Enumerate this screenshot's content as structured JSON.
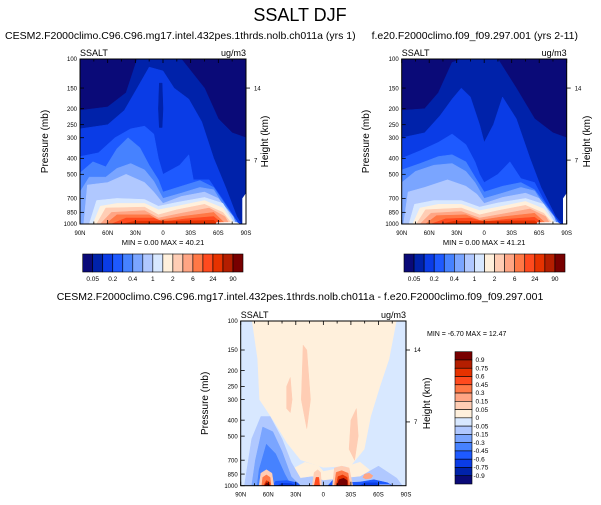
{
  "figure": {
    "title": "SSALT DJF"
  },
  "palette": [
    "#0a0a78",
    "#0022aa",
    "#0a3ce6",
    "#1e5aff",
    "#4682ff",
    "#7aa5ff",
    "#b0c8ff",
    "#d8e8ff",
    "#fff0dc",
    "#ffcdb4",
    "#ffa584",
    "#ff7846",
    "#ff4a1e",
    "#e63200",
    "#b41e00",
    "#780000"
  ],
  "chart_data": [
    {
      "type": "contour",
      "title": "CESM2.F2000climo.C96.C96.mg17.intel.432pes.1thrds.nolb.ch011a (yrs 1)",
      "variable": "SSALT",
      "units": "ug/m3",
      "ylabel": "Pressure (mb)",
      "ylabel_right": "Height (km)",
      "x_ticks": [
        "90N",
        "60N",
        "30N",
        "0",
        "30S",
        "60S",
        "90S"
      ],
      "y_ticks": [
        100,
        150,
        200,
        250,
        300,
        400,
        500,
        700,
        850,
        1000
      ],
      "y_scale": "log",
      "y_right_ticks": [
        {
          "label": "14",
          "p": 150
        },
        {
          "label": "7",
          "p": 410
        }
      ],
      "min_label": "MIN =   0.00  MAX =  40.21",
      "min": 0.0,
      "max": 40.21,
      "colorbar": {
        "orientation": "horizontal",
        "labels": [
          "0.05",
          "0.2",
          "0.4",
          "1",
          "2",
          "6",
          "24",
          "90"
        ]
      }
    },
    {
      "type": "contour",
      "title": "f.e20.F2000climo.f09_f09.297.001 (yrs 2-11)",
      "variable": "SSALT",
      "units": "ug/m3",
      "ylabel": "Pressure (mb)",
      "ylabel_right": "Height (km)",
      "x_ticks": [
        "90N",
        "60N",
        "30N",
        "0",
        "30S",
        "60S",
        "90S"
      ],
      "y_ticks": [
        100,
        150,
        200,
        250,
        300,
        400,
        500,
        700,
        850,
        1000
      ],
      "y_scale": "log",
      "y_right_ticks": [
        {
          "label": "14",
          "p": 150
        },
        {
          "label": "7",
          "p": 410
        }
      ],
      "min_label": "MIN =   0.00  MAX =  41.21",
      "min": 0.0,
      "max": 41.21,
      "colorbar": {
        "orientation": "horizontal",
        "labels": [
          "0.05",
          "0.2",
          "0.4",
          "1",
          "2",
          "6",
          "24",
          "90"
        ]
      }
    },
    {
      "type": "contour",
      "title": "CESM2.F2000climo.C96.C96.mg17.intel.432pes.1thrds.nolb.ch011a - f.e20.F2000climo.f09_f09.297.001",
      "variable": "SSALT",
      "units": "ug/m3",
      "ylabel": "Pressure (mb)",
      "ylabel_right": "Height (km)",
      "x_ticks": [
        "90N",
        "60N",
        "30N",
        "0",
        "30S",
        "60S",
        "90S"
      ],
      "y_ticks": [
        100,
        150,
        200,
        250,
        300,
        400,
        500,
        700,
        850,
        1000
      ],
      "y_scale": "log",
      "y_right_ticks": [
        {
          "label": "14",
          "p": 150
        },
        {
          "label": "7",
          "p": 410
        }
      ],
      "min_label": "MIN =  -6.70  MAX =  12.47",
      "min": -6.7,
      "max": 12.47,
      "colorbar": {
        "orientation": "vertical",
        "labels": [
          "0.9",
          "0.75",
          "0.6",
          "0.45",
          "0.3",
          "0.15",
          "0.05",
          "0",
          "-0.05",
          "-0.15",
          "-0.3",
          "-0.45",
          "-0.6",
          "-0.75",
          "-0.9"
        ]
      }
    }
  ]
}
